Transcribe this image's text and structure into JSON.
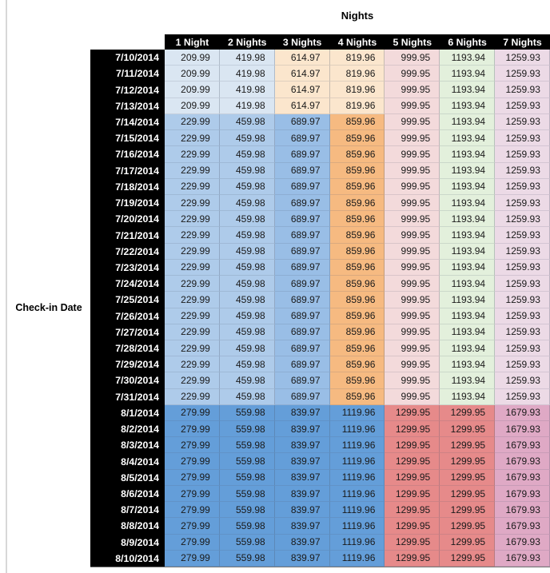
{
  "style": {
    "page_background": "#FFFFFF",
    "left_rule_color": "#D8D8D8",
    "header_bg": "#000000",
    "header_text_color": "#FFFFFF",
    "date_col_bg": "#000000",
    "date_text_color": "#FFFFFF",
    "value_text_color": "#1A1A1A",
    "band_colors": [
      [
        "#DAE6F2",
        "#DAE6F2",
        "#FBE6CD",
        "#FBE6CD",
        "#F3DADB",
        "#E3F0DC",
        "#ECDAE6"
      ],
      [
        "#AECBEA",
        "#AECBEA",
        "#99BEE6",
        "#F6BA81",
        "#F3DADB",
        "#E3F0DC",
        "#ECDAE6"
      ],
      [
        "#649ED9",
        "#649ED9",
        "#649ED9",
        "#649ED9",
        "#E68A8A",
        "#E68A8A",
        "#DFA9C5"
      ]
    ]
  },
  "chart_data": {
    "type": "table",
    "title": "Nights",
    "row_axis_label": "Check-in Date",
    "columns": [
      "1 Night",
      "2 Nights",
      "3 Nights",
      "4 Nights",
      "5 Nights",
      "6 Nights",
      "7 Nights"
    ],
    "rows": [
      {
        "date": "7/10/2014",
        "band": 0,
        "values": [
          "209.99",
          "419.98",
          "614.97",
          "819.96",
          "999.95",
          "1193.94",
          "1259.93"
        ]
      },
      {
        "date": "7/11/2014",
        "band": 0,
        "values": [
          "209.99",
          "419.98",
          "614.97",
          "819.96",
          "999.95",
          "1193.94",
          "1259.93"
        ]
      },
      {
        "date": "7/12/2014",
        "band": 0,
        "values": [
          "209.99",
          "419.98",
          "614.97",
          "819.96",
          "999.95",
          "1193.94",
          "1259.93"
        ]
      },
      {
        "date": "7/13/2014",
        "band": 0,
        "values": [
          "209.99",
          "419.98",
          "614.97",
          "819.96",
          "999.95",
          "1193.94",
          "1259.93"
        ]
      },
      {
        "date": "7/14/2014",
        "band": 1,
        "values": [
          "229.99",
          "459.98",
          "689.97",
          "859.96",
          "999.95",
          "1193.94",
          "1259.93"
        ]
      },
      {
        "date": "7/15/2014",
        "band": 1,
        "values": [
          "229.99",
          "459.98",
          "689.97",
          "859.96",
          "999.95",
          "1193.94",
          "1259.93"
        ]
      },
      {
        "date": "7/16/2014",
        "band": 1,
        "values": [
          "229.99",
          "459.98",
          "689.97",
          "859.96",
          "999.95",
          "1193.94",
          "1259.93"
        ]
      },
      {
        "date": "7/17/2014",
        "band": 1,
        "values": [
          "229.99",
          "459.98",
          "689.97",
          "859.96",
          "999.95",
          "1193.94",
          "1259.93"
        ]
      },
      {
        "date": "7/18/2014",
        "band": 1,
        "values": [
          "229.99",
          "459.98",
          "689.97",
          "859.96",
          "999.95",
          "1193.94",
          "1259.93"
        ]
      },
      {
        "date": "7/19/2014",
        "band": 1,
        "values": [
          "229.99",
          "459.98",
          "689.97",
          "859.96",
          "999.95",
          "1193.94",
          "1259.93"
        ]
      },
      {
        "date": "7/20/2014",
        "band": 1,
        "values": [
          "229.99",
          "459.98",
          "689.97",
          "859.96",
          "999.95",
          "1193.94",
          "1259.93"
        ]
      },
      {
        "date": "7/21/2014",
        "band": 1,
        "values": [
          "229.99",
          "459.98",
          "689.97",
          "859.96",
          "999.95",
          "1193.94",
          "1259.93"
        ]
      },
      {
        "date": "7/22/2014",
        "band": 1,
        "values": [
          "229.99",
          "459.98",
          "689.97",
          "859.96",
          "999.95",
          "1193.94",
          "1259.93"
        ]
      },
      {
        "date": "7/23/2014",
        "band": 1,
        "values": [
          "229.99",
          "459.98",
          "689.97",
          "859.96",
          "999.95",
          "1193.94",
          "1259.93"
        ]
      },
      {
        "date": "7/24/2014",
        "band": 1,
        "values": [
          "229.99",
          "459.98",
          "689.97",
          "859.96",
          "999.95",
          "1193.94",
          "1259.93"
        ]
      },
      {
        "date": "7/25/2014",
        "band": 1,
        "values": [
          "229.99",
          "459.98",
          "689.97",
          "859.96",
          "999.95",
          "1193.94",
          "1259.93"
        ]
      },
      {
        "date": "7/26/2014",
        "band": 1,
        "values": [
          "229.99",
          "459.98",
          "689.97",
          "859.96",
          "999.95",
          "1193.94",
          "1259.93"
        ]
      },
      {
        "date": "7/27/2014",
        "band": 1,
        "values": [
          "229.99",
          "459.98",
          "689.97",
          "859.96",
          "999.95",
          "1193.94",
          "1259.93"
        ]
      },
      {
        "date": "7/28/2014",
        "band": 1,
        "values": [
          "229.99",
          "459.98",
          "689.97",
          "859.96",
          "999.95",
          "1193.94",
          "1259.93"
        ]
      },
      {
        "date": "7/29/2014",
        "band": 1,
        "values": [
          "229.99",
          "459.98",
          "689.97",
          "859.96",
          "999.95",
          "1193.94",
          "1259.93"
        ]
      },
      {
        "date": "7/30/2014",
        "band": 1,
        "values": [
          "229.99",
          "459.98",
          "689.97",
          "859.96",
          "999.95",
          "1193.94",
          "1259.93"
        ]
      },
      {
        "date": "7/31/2014",
        "band": 1,
        "values": [
          "229.99",
          "459.98",
          "689.97",
          "859.96",
          "999.95",
          "1193.94",
          "1259.93"
        ]
      },
      {
        "date": "8/1/2014",
        "band": 2,
        "values": [
          "279.99",
          "559.98",
          "839.97",
          "1119.96",
          "1299.95",
          "1299.95",
          "1679.93"
        ]
      },
      {
        "date": "8/2/2014",
        "band": 2,
        "values": [
          "279.99",
          "559.98",
          "839.97",
          "1119.96",
          "1299.95",
          "1299.95",
          "1679.93"
        ]
      },
      {
        "date": "8/3/2014",
        "band": 2,
        "values": [
          "279.99",
          "559.98",
          "839.97",
          "1119.96",
          "1299.95",
          "1299.95",
          "1679.93"
        ]
      },
      {
        "date": "8/4/2014",
        "band": 2,
        "values": [
          "279.99",
          "559.98",
          "839.97",
          "1119.96",
          "1299.95",
          "1299.95",
          "1679.93"
        ]
      },
      {
        "date": "8/5/2014",
        "band": 2,
        "values": [
          "279.99",
          "559.98",
          "839.97",
          "1119.96",
          "1299.95",
          "1299.95",
          "1679.93"
        ]
      },
      {
        "date": "8/6/2014",
        "band": 2,
        "values": [
          "279.99",
          "559.98",
          "839.97",
          "1119.96",
          "1299.95",
          "1299.95",
          "1679.93"
        ]
      },
      {
        "date": "8/7/2014",
        "band": 2,
        "values": [
          "279.99",
          "559.98",
          "839.97",
          "1119.96",
          "1299.95",
          "1299.95",
          "1679.93"
        ]
      },
      {
        "date": "8/8/2014",
        "band": 2,
        "values": [
          "279.99",
          "559.98",
          "839.97",
          "1119.96",
          "1299.95",
          "1299.95",
          "1679.93"
        ]
      },
      {
        "date": "8/9/2014",
        "band": 2,
        "values": [
          "279.99",
          "559.98",
          "839.97",
          "1119.96",
          "1299.95",
          "1299.95",
          "1679.93"
        ]
      },
      {
        "date": "8/10/2014",
        "band": 2,
        "values": [
          "279.99",
          "559.98",
          "839.97",
          "1119.96",
          "1299.95",
          "1299.95",
          "1679.93"
        ]
      }
    ]
  }
}
